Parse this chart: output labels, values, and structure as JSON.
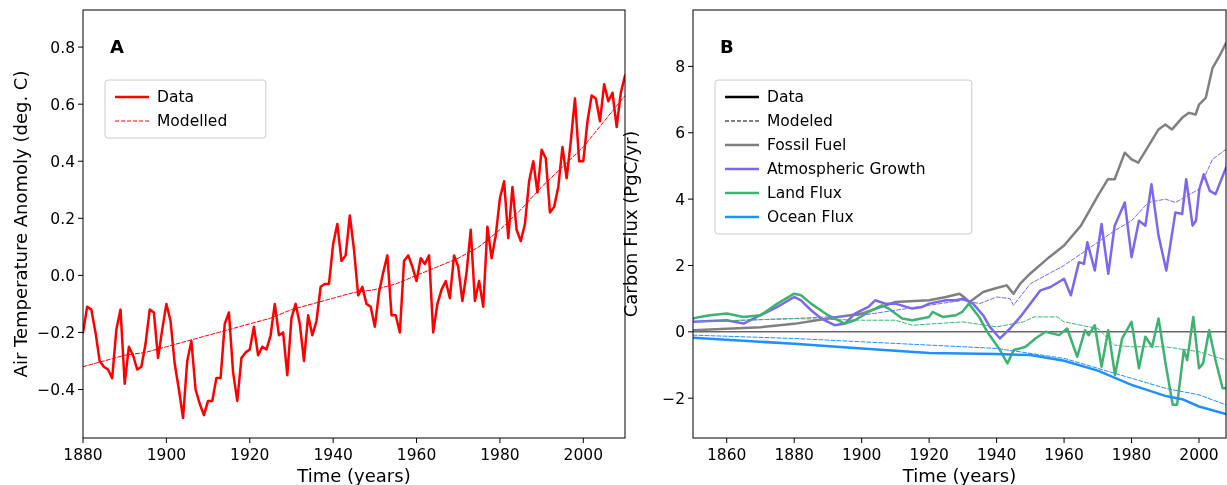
{
  "chart_data": [
    {
      "type": "line",
      "title": "A",
      "xlabel": "Time (years)",
      "ylabel": "Air Temperature Anomoly (deg. C)",
      "xlim": [
        1880,
        2010
      ],
      "ylim": [
        -0.57,
        0.93
      ],
      "xticks": [
        1880,
        1900,
        1920,
        1940,
        1960,
        1980,
        2000
      ],
      "yticks": [
        {
          "value": -0.4,
          "label": "−0.4"
        },
        {
          "value": -0.2,
          "label": "−0.2"
        },
        {
          "value": 0,
          "label": "0.0"
        },
        {
          "value": 0.2,
          "label": "0.2"
        },
        {
          "value": 0.4,
          "label": "0.4"
        },
        {
          "value": 0.6,
          "label": "0.6"
        },
        {
          "value": 0.8,
          "label": "0.8"
        }
      ],
      "legend": "top left",
      "x": [
        1880,
        1881,
        1882,
        1883,
        1884,
        1885,
        1886,
        1887,
        1888,
        1889,
        1890,
        1891,
        1892,
        1893,
        1894,
        1895,
        1896,
        1897,
        1898,
        1899,
        1900,
        1901,
        1902,
        1903,
        1904,
        1905,
        1906,
        1907,
        1908,
        1909,
        1910,
        1911,
        1912,
        1913,
        1914,
        1915,
        1916,
        1917,
        1918,
        1919,
        1920,
        1921,
        1922,
        1923,
        1924,
        1925,
        1926,
        1927,
        1928,
        1929,
        1930,
        1931,
        1932,
        1933,
        1934,
        1935,
        1936,
        1937,
        1938,
        1939,
        1940,
        1941,
        1942,
        1943,
        1944,
        1945,
        1946,
        1947,
        1948,
        1949,
        1950,
        1951,
        1952,
        1953,
        1954,
        1955,
        1956,
        1957,
        1958,
        1959,
        1960,
        1961,
        1962,
        1963,
        1964,
        1965,
        1966,
        1967,
        1968,
        1969,
        1970,
        1971,
        1972,
        1973,
        1974,
        1975,
        1976,
        1977,
        1978,
        1979,
        1980,
        1981,
        1982,
        1983,
        1984,
        1985,
        1986,
        1987,
        1988,
        1989,
        1990,
        1991,
        1992,
        1993,
        1994,
        1995,
        1996,
        1997,
        1998,
        1999,
        2000,
        2001,
        2002,
        2003,
        2004,
        2005,
        2006,
        2007,
        2008,
        2009,
        2010
      ],
      "series": [
        {
          "name": "Data",
          "color": "#ff0000",
          "line_style": "solid",
          "values": [
            -0.2,
            -0.11,
            -0.12,
            -0.2,
            -0.3,
            -0.32,
            -0.33,
            -0.36,
            -0.19,
            -0.12,
            -0.38,
            -0.25,
            -0.28,
            -0.33,
            -0.32,
            -0.24,
            -0.12,
            -0.13,
            -0.29,
            -0.19,
            -0.1,
            -0.16,
            -0.31,
            -0.4,
            -0.5,
            -0.3,
            -0.23,
            -0.4,
            -0.45,
            -0.49,
            -0.44,
            -0.44,
            -0.36,
            -0.36,
            -0.17,
            -0.13,
            -0.34,
            -0.44,
            -0.29,
            -0.27,
            -0.26,
            -0.18,
            -0.28,
            -0.25,
            -0.26,
            -0.21,
            -0.1,
            -0.21,
            -0.2,
            -0.35,
            -0.15,
            -0.1,
            -0.17,
            -0.3,
            -0.14,
            -0.21,
            -0.16,
            -0.04,
            -0.03,
            -0.03,
            0.11,
            0.18,
            0.05,
            0.07,
            0.21,
            0.09,
            -0.07,
            -0.04,
            -0.1,
            -0.11,
            -0.18,
            -0.06,
            0.01,
            0.07,
            -0.14,
            -0.14,
            -0.2,
            0.05,
            0.07,
            0.03,
            -0.02,
            0.06,
            0.04,
            0.07,
            -0.2,
            -0.1,
            -0.05,
            -0.02,
            -0.08,
            0.07,
            0.03,
            -0.09,
            0.01,
            0.16,
            -0.09,
            -0.02,
            -0.11,
            0.17,
            0.06,
            0.14,
            0.27,
            0.33,
            0.13,
            0.31,
            0.16,
            0.12,
            0.18,
            0.33,
            0.4,
            0.29,
            0.44,
            0.41,
            0.22,
            0.24,
            0.31,
            0.45,
            0.34,
            0.47,
            0.62,
            0.4,
            0.4,
            0.54,
            0.63,
            0.62,
            0.54,
            0.67,
            0.61,
            0.64,
            0.52,
            0.64,
            0.7
          ]
        },
        {
          "name": "Modelled",
          "color": "#ff0000",
          "line_style": "dashed",
          "x": [
            1880,
            1885,
            1890,
            1895,
            1900,
            1905,
            1910,
            1915,
            1920,
            1925,
            1930,
            1935,
            1940,
            1945,
            1950,
            1955,
            1960,
            1965,
            1970,
            1975,
            1980,
            1985,
            1990,
            1995,
            2000,
            2005,
            2010
          ],
          "values": [
            -0.32,
            -0.3,
            -0.28,
            -0.27,
            -0.25,
            -0.23,
            -0.21,
            -0.19,
            -0.17,
            -0.15,
            -0.12,
            -0.1,
            -0.08,
            -0.06,
            -0.05,
            -0.03,
            0.0,
            0.03,
            0.06,
            0.1,
            0.16,
            0.23,
            0.31,
            0.38,
            0.45,
            0.54,
            0.63
          ]
        }
      ]
    },
    {
      "type": "line",
      "title": "B",
      "xlabel": "Time (years)",
      "ylabel": "Carbon Flux (PgC/yr)",
      "xlim": [
        1850,
        2008
      ],
      "ylim": [
        -3.2,
        9.7
      ],
      "xticks": [
        1860,
        1880,
        1900,
        1920,
        1940,
        1960,
        1980,
        2000
      ],
      "yticks": [
        {
          "value": -2,
          "label": "−2"
        },
        0,
        2,
        4,
        6,
        8
      ],
      "legend": "top left",
      "ref_lines": [
        {
          "axis": "y",
          "value": 0,
          "color": "#000000"
        }
      ],
      "series": [
        {
          "name": "Data",
          "color": "#000000",
          "line_style": "solid"
        },
        {
          "name": "Modeled",
          "color": "#000000",
          "line_style": "dashed"
        },
        {
          "name": "Fossil Fuel",
          "color": "#808080",
          "line_style": "solid",
          "x": [
            1850,
            1870,
            1880,
            1890,
            1900,
            1910,
            1920,
            1925,
            1929,
            1930,
            1932,
            1936,
            1940,
            1943,
            1945,
            1947,
            1950,
            1955,
            1960,
            1965,
            1970,
            1973,
            1975,
            1978,
            1980,
            1982,
            1985,
            1988,
            1990,
            1992,
            1995,
            1997,
            1999,
            2000,
            2002,
            2004,
            2006,
            2008
          ],
          "values": [
            0.05,
            0.14,
            0.24,
            0.4,
            0.55,
            0.9,
            0.95,
            1.05,
            1.15,
            1.07,
            0.9,
            1.2,
            1.32,
            1.4,
            1.15,
            1.45,
            1.76,
            2.2,
            2.6,
            3.2,
            4.1,
            4.6,
            4.6,
            5.4,
            5.2,
            5.1,
            5.6,
            6.1,
            6.25,
            6.1,
            6.45,
            6.6,
            6.55,
            6.85,
            7.05,
            7.95,
            8.3,
            8.7
          ]
        },
        {
          "name": "Atmospheric Growth",
          "color": "#7b68ee",
          "line_style": "solid",
          "x": [
            1850,
            1860,
            1865,
            1870,
            1875,
            1880,
            1882,
            1885,
            1888,
            1892,
            1895,
            1898,
            1902,
            1904,
            1907,
            1910,
            1915,
            1918,
            1920,
            1925,
            1928,
            1930,
            1933,
            1936,
            1938,
            1941,
            1944,
            1947,
            1950,
            1953,
            1956,
            1960,
            1962,
            1964.4,
            1965.9,
            1966.9,
            1969.1,
            1971.1,
            1973.1,
            1975,
            1978,
            1980,
            1982.2,
            1984.1,
            1985.9,
            1988,
            1990.3,
            1993,
            1995,
            1996.2,
            1998.1,
            1999.1,
            2000.1,
            2001.4,
            2003.2,
            2004.9,
            2008
          ],
          "values": [
            0.3,
            0.35,
            0.25,
            0.5,
            0.75,
            1.05,
            0.95,
            0.65,
            0.4,
            0.2,
            0.25,
            0.55,
            0.75,
            0.95,
            0.85,
            0.85,
            0.7,
            0.75,
            0.85,
            0.95,
            0.95,
            1.0,
            0.85,
            0.5,
            0.15,
            -0.2,
            0.1,
            0.45,
            0.85,
            1.25,
            1.35,
            1.6,
            1.1,
            2.1,
            2.05,
            2.7,
            1.85,
            3.25,
            1.75,
            3.2,
            3.9,
            2.25,
            3.35,
            3.2,
            4.45,
            2.9,
            1.85,
            3.6,
            3.55,
            4.6,
            3.2,
            3.35,
            4.3,
            4.75,
            4.25,
            4.15,
            4.95
          ]
        },
        {
          "name": "Land Flux",
          "color": "#3cb371",
          "line_style": "solid",
          "x": [
            1850,
            1852,
            1855,
            1860,
            1865,
            1870,
            1875,
            1880,
            1882,
            1885,
            1890,
            1895,
            1898,
            1902,
            1906,
            1908,
            1912,
            1915,
            1920,
            1921,
            1924,
            1927.9,
            1929.8,
            1931.8,
            1934.8,
            1937.2,
            1940.7,
            1943.2,
            1945.1,
            1948.6,
            1951.5,
            1954.5,
            1958.5,
            1960.9,
            1963.9,
            1966.2,
            1967.3,
            1969.1,
            1971.1,
            1973.1,
            1975.1,
            1977.2,
            1980,
            1982.2,
            1984.1,
            1986.1,
            1988,
            1990,
            1992.2,
            1993.5,
            1995.5,
            1996.5,
            1998.3,
            2000,
            2001.2,
            2003,
            2005,
            2007,
            2008
          ],
          "values": [
            0.4,
            0.45,
            0.5,
            0.55,
            0.45,
            0.5,
            0.85,
            1.15,
            1.1,
            0.85,
            0.5,
            0.25,
            0.35,
            0.6,
            0.8,
            0.7,
            0.4,
            0.35,
            0.45,
            0.6,
            0.45,
            0.5,
            0.6,
            0.85,
            0.45,
            0.0,
            -0.5,
            -0.95,
            -0.55,
            -0.45,
            -0.2,
            0.0,
            -0.1,
            0.1,
            -0.75,
            0.05,
            -0.1,
            0.2,
            -1.05,
            0.05,
            -1.3,
            -0.2,
            0.3,
            -1.1,
            -0.15,
            -0.45,
            0.4,
            -0.9,
            -2.2,
            -2.2,
            -0.55,
            -0.85,
            0.45,
            -1.1,
            -0.95,
            0.05,
            -0.9,
            -1.7,
            -1.7
          ]
        },
        {
          "name": "Ocean Flux",
          "color": "#1e90ff",
          "line_style": "solid",
          "x": [
            1850,
            1880,
            1900,
            1920,
            1940,
            1950,
            1960,
            1970,
            1980,
            1990,
            1995,
            2000,
            2008
          ],
          "values": [
            -0.18,
            -0.36,
            -0.5,
            -0.64,
            -0.67,
            -0.7,
            -0.87,
            -1.17,
            -1.6,
            -1.93,
            -2.03,
            -2.25,
            -2.48
          ]
        },
        {
          "color": "#7b68ee",
          "line_style": "dashed",
          "x": [
            1850,
            1880,
            1900,
            1920,
            1930,
            1935,
            1940,
            1944,
            1945,
            1950,
            1960,
            1970,
            1975,
            1980,
            1985,
            1990,
            1993,
            2000,
            2004,
            2008
          ],
          "values": [
            0.3,
            0.4,
            0.5,
            0.8,
            0.95,
            0.85,
            1.05,
            1.0,
            0.8,
            1.45,
            2.0,
            2.7,
            3.05,
            3.35,
            3.9,
            4.0,
            3.9,
            4.3,
            5.2,
            5.5
          ]
        },
        {
          "color": "#3cb371",
          "line_style": "dashed",
          "x": [
            1850,
            1880,
            1900,
            1910,
            1915,
            1930,
            1940,
            1948,
            1951,
            1958,
            1960,
            1970,
            1975,
            1980,
            1990,
            2000,
            2008
          ],
          "values": [
            0.3,
            0.4,
            0.35,
            0.35,
            0.2,
            0.3,
            0.15,
            0.3,
            0.45,
            0.45,
            0.3,
            0.1,
            -0.4,
            -0.45,
            -0.45,
            -0.6,
            -0.85
          ]
        },
        {
          "color": "#1e90ff",
          "line_style": "dashed",
          "x": [
            1850,
            1880,
            1900,
            1920,
            1940,
            1960,
            1980,
            1990,
            2000,
            2008
          ],
          "values": [
            -0.1,
            -0.2,
            -0.3,
            -0.4,
            -0.5,
            -0.8,
            -1.4,
            -1.7,
            -1.9,
            -2.2
          ]
        }
      ]
    }
  ]
}
